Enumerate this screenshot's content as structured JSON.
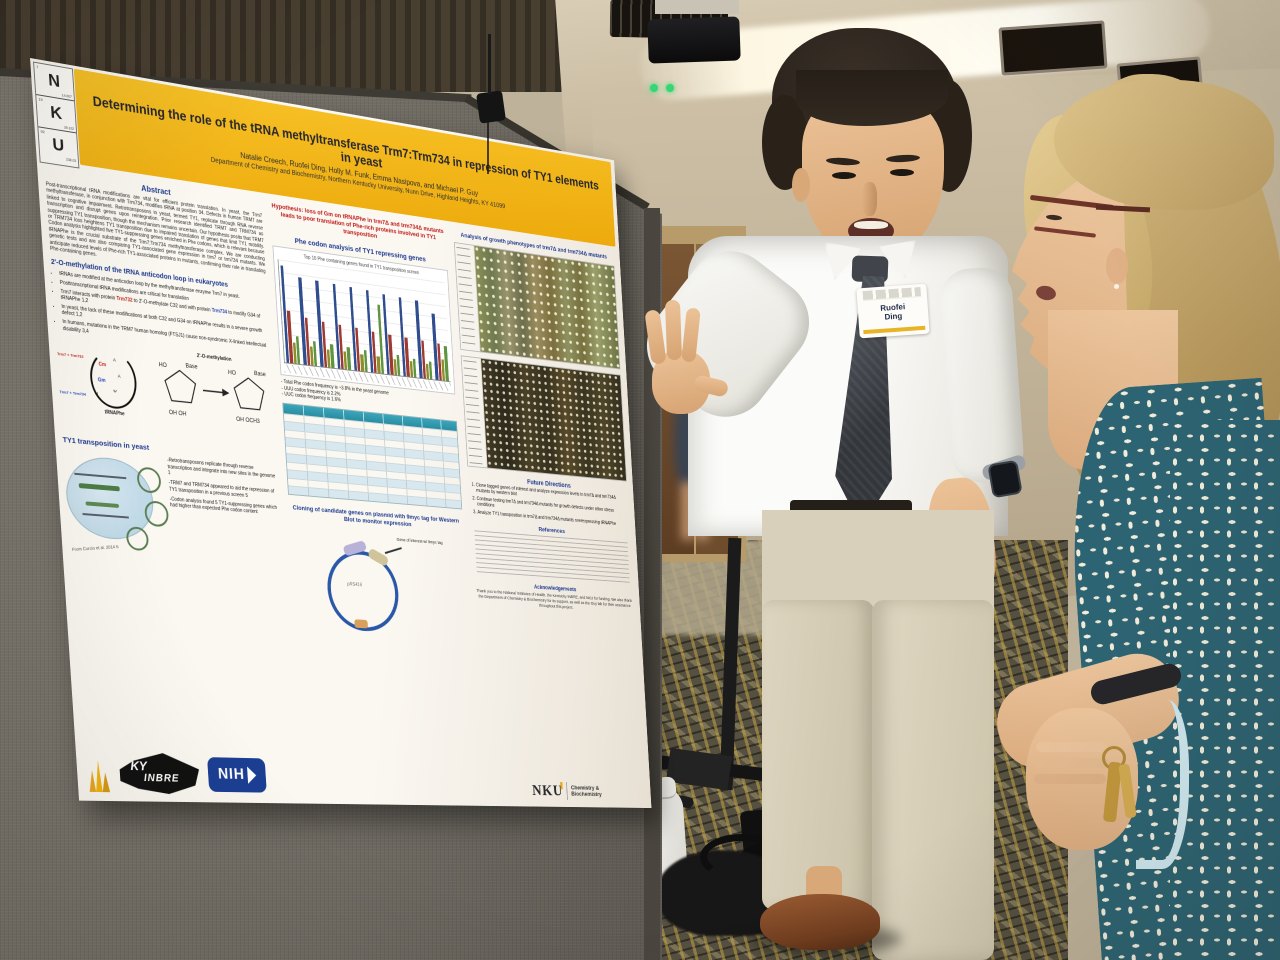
{
  "poster": {
    "title": "Determining the role of the tRNA methyltransferase Trm7:Trm734 in repression of TY1 elements in yeast",
    "authors": "Natalie Creech, Ruofei Ding, Holly M. Funk, Emma Nasipova, and Michael P. Guy",
    "affiliation": "Department of Chemistry and Biochemistry, Northern Kentucky University, Nunn Drive, Highland Heights, KY 41099",
    "nku_periodic": {
      "cells": [
        {
          "symbol": "N",
          "number": "7",
          "mass": "14.007"
        },
        {
          "symbol": "K",
          "number": "19",
          "mass": "39.102"
        },
        {
          "symbol": "U",
          "number": "92",
          "mass": "238.03"
        }
      ]
    },
    "left": {
      "abstract_heading": "Abstract",
      "abstract_text": "Post-transcriptional tRNA modifications are vital for efficient protein translation. In yeast, the Trm7 methyltransferase, in conjunction with Trm734, modifies tRNA at position 34. Defects in human TRM7 are linked to cognitive impairment. Retrotransposons in yeast, termed TY1, replicate through RNA reverse transcription and disrupt genes upon reintegration. Prior research identified TRM7 and TRM734 as suppressing TY1 transposition, though the mechanism remains uncertain. Our hypothesis posits that TRM7 or TRM734 loss heightens TY1 transposition due to impaired translation of genes that limit TY1 mobility. Codon analysis highlighted five TY1-suppressing genes enriched in Phe codons, which is relevant because tRNAPhe is the crucial substrate of the Trm7:Trm734 methyltransferase complex. We are conducting genetic tests and are also comparing TY1-associated gene expression in trm7 or trm734 mutants. We anticipate reduced levels of Phe-rich TY1-associated proteins in mutants, confirming their role in translating Phe-containing genes.",
      "methylation": {
        "heading": "2'-O-methylation of the tRNA anticodon loop in eukaryotes",
        "b1": "tRNAs are modified at the anticodon loop by the methyltransferase enzyme Trm7 in yeast.",
        "b2": "Posttranscriptional tRNA modifications are critical for translation",
        "b3a": "Trm7 interacts with protein ",
        "b3_red": "Trm732",
        "b3b": " to 2'-O-methylate C32 and with protein ",
        "b3_blue": "Trm734",
        "b3c": " to modify G34 of tRNAPhe 1,2",
        "b4": "In yeast, the lack of these modifications at both C32 and G34 on tRNAPhe results in a severe growth defect 1,2",
        "b5": "In humans, mutations in the TRM7 human homolog (FTSJ1) cause non-syndromic X-linked intellectual disability 3,4"
      },
      "diagram": {
        "meth_title": "2'-O-methylation",
        "trna_label": "tRNAPhe",
        "enzyme1": "Trm7 + Trm732",
        "enzyme2": "Trm7 + Trm734",
        "cm": "Cm",
        "gm": "Gm",
        "ho": "HO",
        "base": "Base",
        "oh_oh": "OH  OH",
        "oh_och3": "OH  OCH3"
      },
      "ty1": {
        "heading": "TY1 transposition in yeast",
        "b1": "-Retrotransposons replicate through reverse transcription and integrate into new sites in the genome 1",
        "b2": "-TRM7 and TRM734 appeared to aid the repression of TY1 transposition in a previous screen 5",
        "b3": "-Codon analysis found 5 TY1-suppressing genes which had higher than expected Phe codon content",
        "caption": "From Curcio et al. 2014 6"
      },
      "logos": {
        "ky_line1": "KY",
        "ky_line2": "INBRE",
        "nih": "NIH"
      }
    },
    "middle": {
      "hypothesis": "Hypothesis: loss of Gm on tRNAPhe in trm7Δ and trm734Δ mutants leads to poor translation of Phe-rich proteins involved in TY1 transposition",
      "phe_heading": "Phe codon analysis of TY1 repressing genes",
      "note1": "- Total Phe codon frequency is ~3.8% in the yeast genome",
      "note2": "- UUU codon frequency is 2.2%",
      "note3": "- UUC codon frequency is 1.6%",
      "cloning_heading": "Cloning of candidate genes on plasmid with 9myc tag for Western Blot to monitor expression",
      "plasmid_label": "pRS416",
      "plasmid_annotation": "Gene of interest w/ 9myc tag"
    },
    "right": {
      "growth_heading": "Analysis of growth phenotypes of trm7Δ and trm734Δ mutants",
      "future_heading": "Future Directions",
      "fd1": "Clone tagged genes of interest and analyze expression levels in trm7Δ and trm734Δ mutants by western blot",
      "fd2": "Continue testing trm7Δ and trm734Δ mutants for growth defects under other stress conditions",
      "fd3": "Analyze TY1 transposition in trm7Δ and trm734Δ mutants overexpressing tRNAPhe",
      "references_heading": "References",
      "ack_heading": "Acknowledgements",
      "ack_text": "Thank you to the National Institutes of Health, the Kentucky INBRE, and NKU for funding. We also thank the Department of Chemistry & Biochemistry for its support, as well as the Guy lab for their assistance throughout this project.",
      "nku": "NKU",
      "dept1": "Chemistry &",
      "dept2": "Biochemistry"
    }
  },
  "people": {
    "presenter": {
      "name_line1": "Ruofei",
      "name_line2": "Ding"
    }
  },
  "chart_data": {
    "type": "bar",
    "title": "Phe codon analysis of TY1 repressing genes",
    "subtitle": "Top 10 Phe containing genes found in TY1 transposition screen",
    "categories": [
      "gene 1",
      "gene 2",
      "gene 3",
      "gene 4",
      "gene 5",
      "gene 6",
      "gene 7",
      "gene 8",
      "gene 9",
      "gene 10"
    ],
    "series": [
      {
        "name": "series-1-blue",
        "color": "#2f4d8f",
        "values": [
          8.5,
          7.7,
          7.6,
          7.5,
          7.4,
          7.3,
          7.2,
          7.1,
          7.0,
          6.0
        ]
      },
      {
        "name": "series-2-red",
        "color": "#9e3a32",
        "values": [
          4.6,
          4.2,
          4.0,
          3.9,
          3.8,
          3.7,
          3.6,
          3.5,
          3.4,
          3.3
        ]
      },
      {
        "name": "series-3-olive",
        "color": "#8f8d2a",
        "values": [
          1.8,
          1.7,
          1.6,
          1.6,
          1.5,
          1.5,
          1.4,
          1.4,
          1.3,
          1.9
        ]
      },
      {
        "name": "series-4-green",
        "color": "#5f9440",
        "values": [
          2.4,
          2.2,
          2.1,
          2.0,
          1.9,
          6.2,
          1.8,
          1.7,
          1.6,
          3.2
        ]
      }
    ],
    "ylim": [
      0,
      9
    ],
    "xlabel": "",
    "ylabel": "",
    "legend_position": "none",
    "grid": true,
    "axis_tick_labels_legible": false
  },
  "room_colors": {
    "board_gray": "#736e65",
    "poster_gold": "#f0b511",
    "carpet_base": "#57524-6",
    "dress_teal": "#2d6473"
  }
}
